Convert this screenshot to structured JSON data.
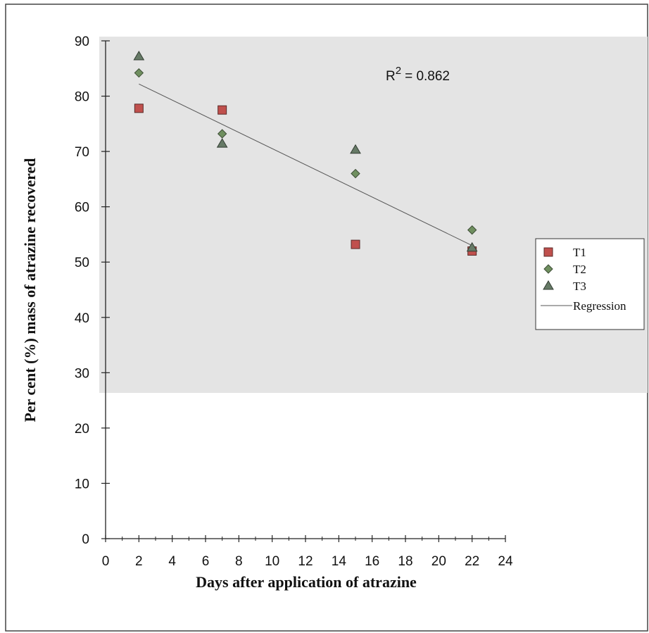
{
  "chart_data": {
    "type": "scatter",
    "xlabel": "Days after application of atrazine",
    "ylabel": "Per cent (%) mass of atrazine recovered",
    "xlim": [
      0,
      24
    ],
    "ylim": [
      0,
      90
    ],
    "x_ticks": [
      0,
      2,
      4,
      6,
      8,
      10,
      12,
      14,
      16,
      18,
      20,
      22,
      24
    ],
    "y_ticks": [
      0,
      10,
      20,
      30,
      40,
      50,
      60,
      70,
      80,
      90
    ],
    "grid": false,
    "legend_position": "right",
    "series": [
      {
        "name": "T1",
        "marker": "square",
        "color": "#c0504d",
        "points": [
          {
            "x": 2,
            "y": 77.8
          },
          {
            "x": 7,
            "y": 77.5
          },
          {
            "x": 15,
            "y": 53.2
          },
          {
            "x": 22,
            "y": 52.0
          }
        ]
      },
      {
        "name": "T2",
        "marker": "diamond",
        "color": "#6f8f5f",
        "points": [
          {
            "x": 2,
            "y": 84.2
          },
          {
            "x": 7,
            "y": 73.2
          },
          {
            "x": 15,
            "y": 66.0
          },
          {
            "x": 22,
            "y": 55.8
          }
        ]
      },
      {
        "name": "T3",
        "marker": "triangle",
        "color": "#667a66",
        "points": [
          {
            "x": 2,
            "y": 87.2
          },
          {
            "x": 7,
            "y": 71.4
          },
          {
            "x": 15,
            "y": 70.3
          },
          {
            "x": 22,
            "y": 52.6
          }
        ]
      }
    ],
    "regression": {
      "name": "Regression",
      "x": [
        2,
        22
      ],
      "y": [
        82.2,
        53.0
      ]
    },
    "annotation": {
      "prefix": "R",
      "superscript": "2",
      "text": "= 0.862"
    }
  }
}
